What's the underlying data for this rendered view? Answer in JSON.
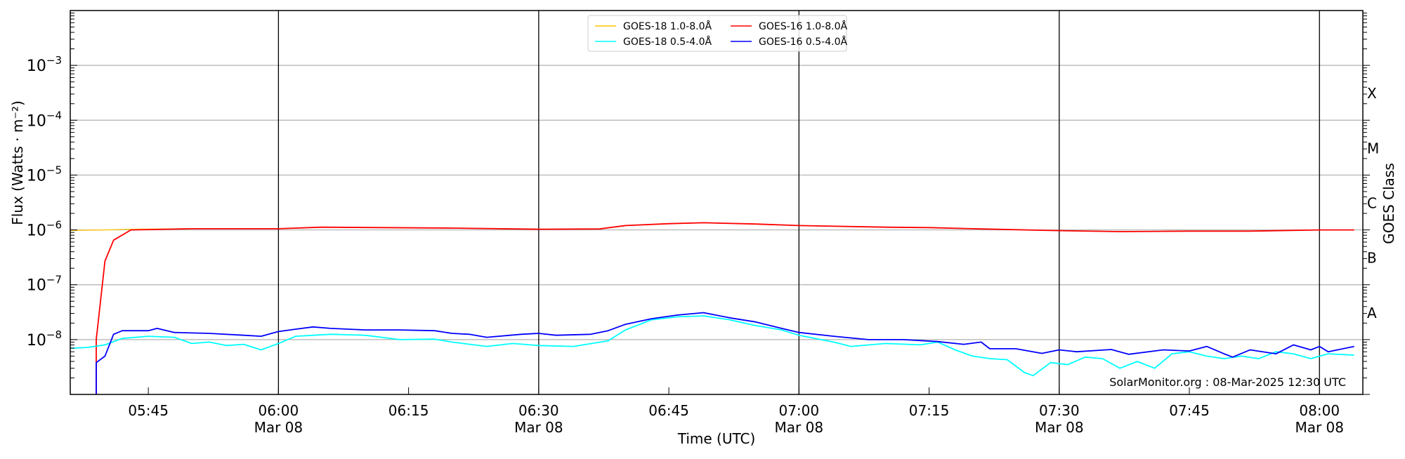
{
  "chart_data": {
    "type": "line",
    "title": "",
    "xlabel": "Time (UTC)",
    "ylabel": "Flux (Watts · m⁻²)",
    "ylabel_right": "GOES Class",
    "yscale": "log",
    "ylim": [
      1e-09,
      0.01
    ],
    "xlim": [
      "05:36",
      "08:05"
    ],
    "date": "Mar 08",
    "grid": "horizontal at decades, vertical at half-hours",
    "legend_placement": "top-center",
    "y_ticks": [
      {
        "value": 1e-08,
        "base": "10",
        "exp": "−8"
      },
      {
        "value": 1e-07,
        "base": "10",
        "exp": "−7"
      },
      {
        "value": 1e-06,
        "base": "10",
        "exp": "−6"
      },
      {
        "value": 1e-05,
        "base": "10",
        "exp": "−5"
      },
      {
        "value": 0.0001,
        "base": "10",
        "exp": "−4"
      },
      {
        "value": 0.001,
        "base": "10",
        "exp": "−3"
      }
    ],
    "x_ticks": [
      {
        "time": "05:45",
        "label": "05:45",
        "sub": ""
      },
      {
        "time": "06:00",
        "label": "06:00",
        "sub": "Mar 08"
      },
      {
        "time": "06:15",
        "label": "06:15",
        "sub": ""
      },
      {
        "time": "06:30",
        "label": "06:30",
        "sub": "Mar 08"
      },
      {
        "time": "06:45",
        "label": "06:45",
        "sub": ""
      },
      {
        "time": "07:00",
        "label": "07:00",
        "sub": "Mar 08"
      },
      {
        "time": "07:15",
        "label": "07:15",
        "sub": ""
      },
      {
        "time": "07:30",
        "label": "07:30",
        "sub": "Mar 08"
      },
      {
        "time": "07:45",
        "label": "07:45",
        "sub": ""
      },
      {
        "time": "08:00",
        "label": "08:00",
        "sub": "Mar 08"
      }
    ],
    "vertical_lines": [
      "06:00",
      "06:30",
      "07:00",
      "07:30",
      "08:00"
    ],
    "goes_classes": [
      {
        "label": "X",
        "value": 0.000316
      },
      {
        "label": "M",
        "value": 3.16e-05
      },
      {
        "label": "C",
        "value": 3.16e-06
      },
      {
        "label": "B",
        "value": 3.16e-07
      },
      {
        "label": "A",
        "value": 3.16e-08
      }
    ],
    "annotation": "SolarMonitor.org : 08-Mar-2025 12:30 UTC",
    "series": [
      {
        "name": "GOES-18 1.0-8.0Å",
        "color": "#ffc400",
        "x": [
          "05:36",
          "05:40",
          "05:43",
          "05:50",
          "06:00",
          "06:05",
          "06:20",
          "06:30",
          "06:37",
          "06:40",
          "06:45",
          "06:49",
          "06:55",
          "07:00",
          "07:10",
          "07:15",
          "07:20",
          "07:30",
          "07:37",
          "07:45",
          "07:52",
          "08:00",
          "08:04"
        ],
        "y": [
          9.8e-07,
          1e-06,
          1.03e-06,
          1.05e-06,
          1.05e-06,
          1.12e-06,
          1.08e-06,
          1.03e-06,
          1.04e-06,
          1.2e-06,
          1.3e-06,
          1.35e-06,
          1.28e-06,
          1.2e-06,
          1.12e-06,
          1.1e-06,
          1.05e-06,
          9.7e-07,
          9.3e-07,
          9.5e-07,
          9.5e-07,
          1e-06,
          1e-06
        ]
      },
      {
        "name": "GOES-16 1.0-8.0Å",
        "color": "#ff0000",
        "x": [
          "05:39",
          "05:39",
          "05:40",
          "05:41",
          "05:43",
          "05:50",
          "06:00",
          "06:05",
          "06:20",
          "06:30",
          "06:37",
          "06:40",
          "06:45",
          "06:49",
          "06:55",
          "07:00",
          "07:10",
          "07:15",
          "07:20",
          "07:30",
          "07:37",
          "07:45",
          "07:52",
          "08:00",
          "08:04"
        ],
        "y": [
          1e-09,
          1e-08,
          2.7e-07,
          6.5e-07,
          1e-06,
          1.05e-06,
          1.05e-06,
          1.12e-06,
          1.08e-06,
          1.03e-06,
          1.04e-06,
          1.2e-06,
          1.3e-06,
          1.35e-06,
          1.28e-06,
          1.2e-06,
          1.12e-06,
          1.1e-06,
          1.05e-06,
          9.7e-07,
          9.3e-07,
          9.5e-07,
          9.5e-07,
          1e-06,
          1e-06
        ]
      },
      {
        "name": "GOES-18 0.5-4.0Å",
        "color": "#00ffff",
        "x": [
          "05:36",
          "05:38",
          "05:40",
          "05:42",
          "05:45",
          "05:48",
          "05:50",
          "05:52",
          "05:54",
          "05:56",
          "05:58",
          "06:00",
          "06:02",
          "06:06",
          "06:10",
          "06:14",
          "06:18",
          "06:20",
          "06:24",
          "06:27",
          "06:30",
          "06:34",
          "06:38",
          "06:40",
          "06:43",
          "06:46",
          "06:49",
          "06:52",
          "06:55",
          "06:58",
          "07:00",
          "07:04",
          "07:06",
          "07:10",
          "07:14",
          "07:16",
          "07:18",
          "07:20",
          "07:22",
          "07:24",
          "07:26",
          "07:27",
          "07:29",
          "07:31",
          "07:33",
          "07:35",
          "07:37",
          "07:39",
          "07:41",
          "07:43",
          "07:45",
          "07:47",
          "07:49",
          "07:51",
          "07:53",
          "07:55",
          "07:57",
          "07:59",
          "08:01",
          "08:04"
        ],
        "y": [
          6.9e-09,
          7.2e-09,
          8e-09,
          1.05e-08,
          1.15e-08,
          1.1e-08,
          8.5e-09,
          9e-09,
          7.8e-09,
          8.2e-09,
          6.5e-09,
          8.5e-09,
          1.15e-08,
          1.25e-08,
          1.2e-08,
          1e-08,
          1.02e-08,
          9e-09,
          7.5e-09,
          8.5e-09,
          7.8e-09,
          7.5e-09,
          9.5e-09,
          1.5e-08,
          2.3e-08,
          2.6e-08,
          2.7e-08,
          2.3e-08,
          1.8e-08,
          1.5e-08,
          1.2e-08,
          9e-09,
          7.5e-09,
          8.5e-09,
          8e-09,
          9e-09,
          6.5e-09,
          5e-09,
          4.5e-09,
          4.3e-09,
          2.5e-09,
          2.2e-09,
          3.8e-09,
          3.5e-09,
          4.8e-09,
          4.5e-09,
          3e-09,
          4e-09,
          3e-09,
          5.5e-09,
          6e-09,
          5e-09,
          4.5e-09,
          5e-09,
          4.5e-09,
          6e-09,
          5.5e-09,
          4.5e-09,
          5.5e-09,
          5.2e-09
        ]
      },
      {
        "name": "GOES-16 0.5-4.0Å",
        "color": "#0000ff",
        "x": [
          "05:39",
          "05:39",
          "05:40",
          "05:41",
          "05:42",
          "05:45",
          "05:46",
          "05:48",
          "05:52",
          "05:56",
          "05:58",
          "06:00",
          "06:02",
          "06:04",
          "06:06",
          "06:10",
          "06:14",
          "06:18",
          "06:20",
          "06:22",
          "06:24",
          "06:28",
          "06:30",
          "06:32",
          "06:36",
          "06:38",
          "06:40",
          "06:43",
          "06:46",
          "06:49",
          "06:52",
          "06:55",
          "06:58",
          "07:00",
          "07:04",
          "07:08",
          "07:12",
          "07:16",
          "07:19",
          "07:21",
          "07:22",
          "07:25",
          "07:28",
          "07:30",
          "07:32",
          "07:36",
          "07:38",
          "07:42",
          "07:45",
          "07:47",
          "07:49",
          "07:50",
          "07:52",
          "07:55",
          "07:57",
          "07:59",
          "08:00",
          "08:01",
          "08:04"
        ],
        "y": [
          1e-09,
          3.8e-09,
          5e-09,
          1.25e-08,
          1.45e-08,
          1.45e-08,
          1.6e-08,
          1.35e-08,
          1.3e-08,
          1.2e-08,
          1.15e-08,
          1.4e-08,
          1.55e-08,
          1.7e-08,
          1.6e-08,
          1.5e-08,
          1.5e-08,
          1.45e-08,
          1.3e-08,
          1.25e-08,
          1.1e-08,
          1.25e-08,
          1.3e-08,
          1.2e-08,
          1.25e-08,
          1.45e-08,
          1.9e-08,
          2.4e-08,
          2.8e-08,
          3.1e-08,
          2.5e-08,
          2.1e-08,
          1.6e-08,
          1.35e-08,
          1.15e-08,
          1e-08,
          1e-08,
          9.2e-09,
          8.2e-09,
          9e-09,
          6.8e-09,
          6.8e-09,
          5.6e-09,
          6.5e-09,
          6e-09,
          6.6e-09,
          5.4e-09,
          6.5e-09,
          6.2e-09,
          7.5e-09,
          5.5e-09,
          4.8e-09,
          6.5e-09,
          5.5e-09,
          8e-09,
          6.5e-09,
          7.5e-09,
          6e-09,
          7.5e-09
        ]
      }
    ]
  }
}
